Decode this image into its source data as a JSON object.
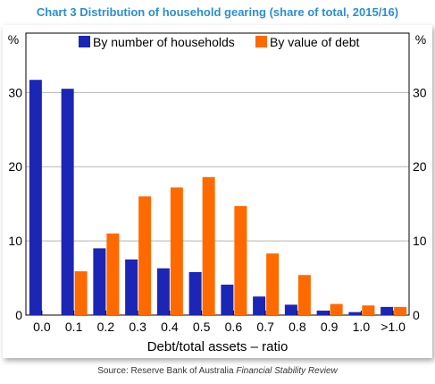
{
  "title": "Chart 3 Distribution of household gearing (share of total, 2015/16)",
  "source_prefix": "Source: Reserve Bank of Australia ",
  "source_publication": "Financial Stability Review",
  "colors": {
    "series1": "#1c26b5",
    "series2": "#ff6a00",
    "title": "#2a8fd0"
  },
  "chart_data": {
    "type": "bar",
    "categories": [
      "0.0",
      "0.1",
      "0.2",
      "0.3",
      "0.4",
      "0.5",
      "0.6",
      "0.7",
      "0.8",
      "0.9",
      "1.0",
      ">1.0"
    ],
    "series": [
      {
        "name": "By number of households",
        "values": [
          31.7,
          30.5,
          9.0,
          7.5,
          6.3,
          5.8,
          4.1,
          2.5,
          1.4,
          0.6,
          0.4,
          1.1
        ]
      },
      {
        "name": "By value of debt",
        "values": [
          0.0,
          5.9,
          11.0,
          16.0,
          17.2,
          18.6,
          14.7,
          8.3,
          5.4,
          1.5,
          1.3,
          1.1
        ]
      }
    ],
    "xlabel": "Debt/total assets – ratio",
    "ylabel_left": "%",
    "ylabel_right": "%",
    "ylim": [
      0,
      38
    ],
    "yticks": [
      0,
      10,
      20,
      30
    ],
    "legend_position": "top"
  }
}
